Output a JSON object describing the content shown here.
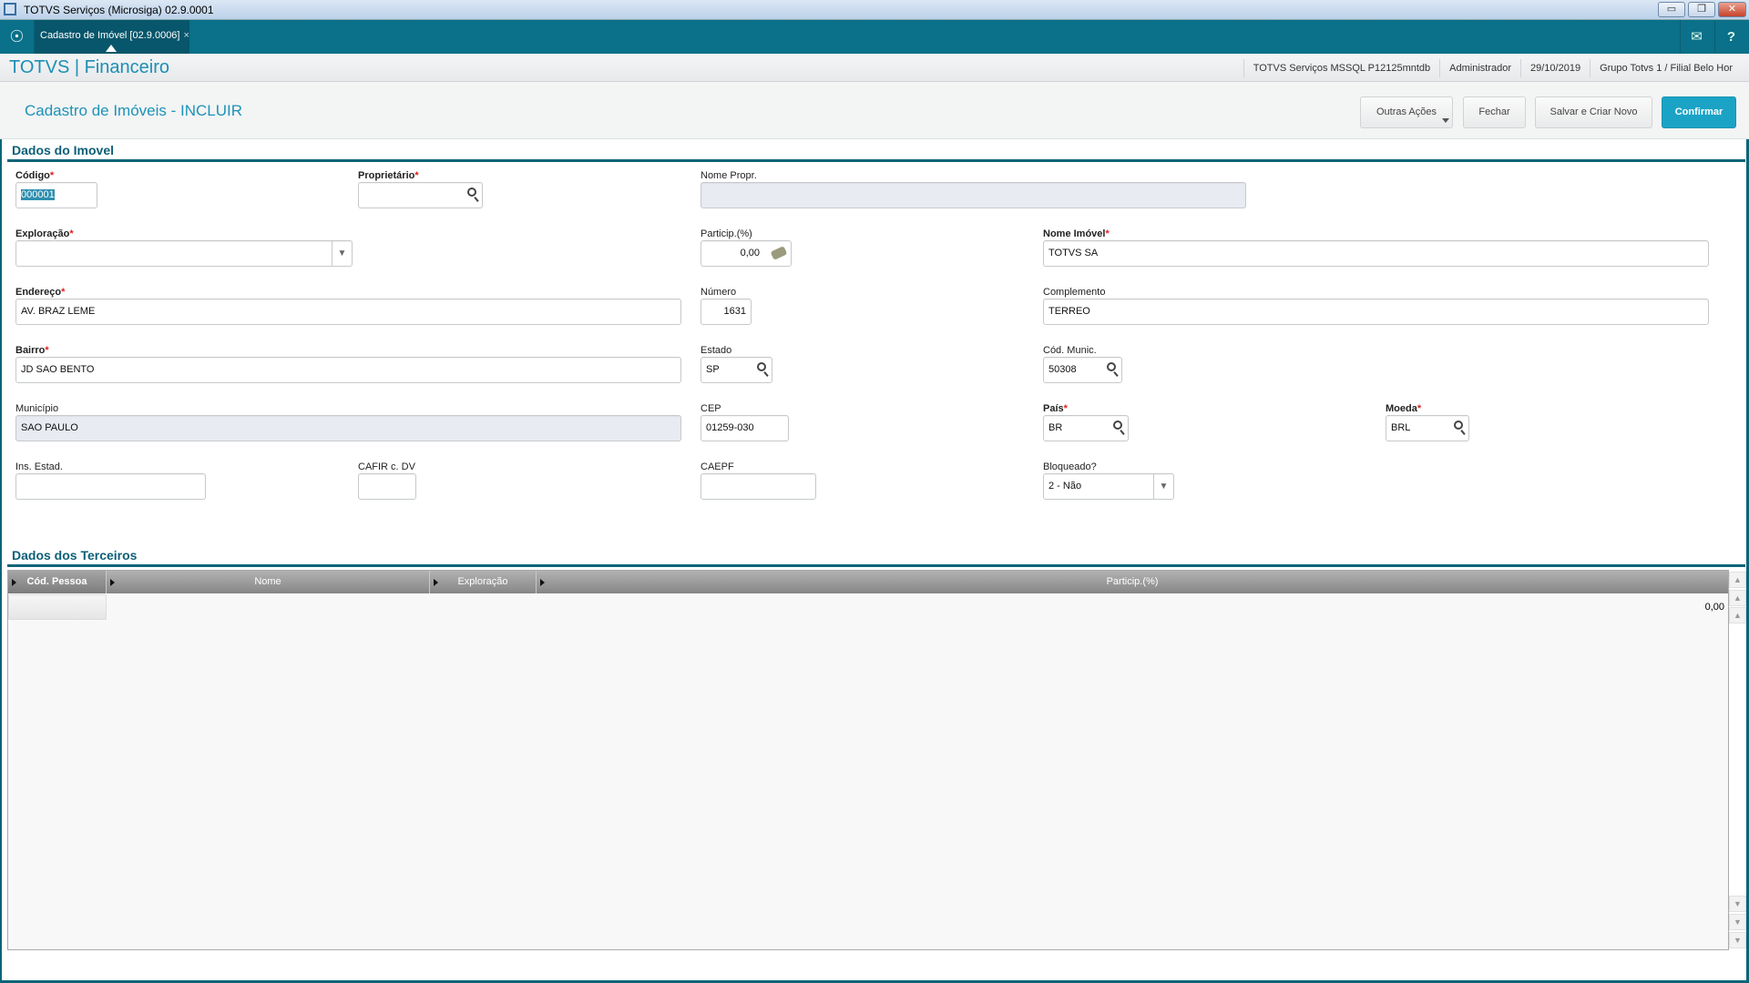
{
  "window": {
    "title": "TOTVS Serviços (Microsiga) 02.9.0001",
    "minimize": "▭",
    "restore": "❐",
    "close": "✕"
  },
  "tabs": {
    "home_icon": "☉",
    "active_tab": "Cadastro de Imóvel [02.9.0006]",
    "close_tab": "×",
    "mail_icon": "✉",
    "help_icon": "?"
  },
  "header": {
    "brand": "TOTVS | Financeiro",
    "environment": "TOTVS Serviços MSSQL P12125mntdb",
    "user": "Administrador",
    "date": "29/10/2019",
    "branch": "Grupo Totvs 1 / Filial Belo Hor"
  },
  "page": {
    "title": "Cadastro de Imóveis - INCLUIR",
    "buttons": {
      "other_actions": "Outras Ações",
      "close": "Fechar",
      "save_new": "Salvar e Criar Novo",
      "confirm": "Confirmar"
    }
  },
  "form": {
    "section_title": "Dados do Imovel",
    "required_mark": "*",
    "codigo": {
      "label": "Código",
      "value": "000001"
    },
    "proprietario": {
      "label": "Proprietário",
      "value": ""
    },
    "nome_propr": {
      "label": "Nome Propr.",
      "value": ""
    },
    "exploracao": {
      "label": "Exploração",
      "value": ""
    },
    "particip": {
      "label": "Particip.(%)",
      "value": "0,00"
    },
    "nome_imovel": {
      "label": "Nome Imóvel",
      "value": "TOTVS SA"
    },
    "endereco": {
      "label": "Endereço",
      "value": "AV. BRAZ LEME"
    },
    "numero": {
      "label": "Número",
      "value": "1631"
    },
    "complemento": {
      "label": "Complemento",
      "value": "TERREO"
    },
    "bairro": {
      "label": "Bairro",
      "value": "JD SAO BENTO"
    },
    "estado": {
      "label": "Estado",
      "value": "SP"
    },
    "cod_munic": {
      "label": "Cód. Munic.",
      "value": "50308"
    },
    "municipio": {
      "label": "Município",
      "value": "SAO PAULO"
    },
    "cep": {
      "label": "CEP",
      "value": "01259-030"
    },
    "pais": {
      "label": "País",
      "value": "BR"
    },
    "moeda": {
      "label": "Moeda",
      "value": "BRL"
    },
    "ins_estad": {
      "label": "Ins. Estad.",
      "value": ""
    },
    "cafir": {
      "label": "CAFIR c. DV",
      "value": ""
    },
    "caepf": {
      "label": "CAEPF",
      "value": ""
    },
    "bloqueado": {
      "label": "Bloqueado?",
      "value": "2 - Não"
    }
  },
  "terceiros": {
    "section_title": "Dados dos Terceiros",
    "columns": [
      "Cód. Pessoa",
      "Nome",
      "Exploração",
      "Particip.(%)"
    ],
    "rows": [
      {
        "cod": "",
        "nome": "",
        "exploracao": "",
        "particip": "0,00"
      }
    ]
  }
}
